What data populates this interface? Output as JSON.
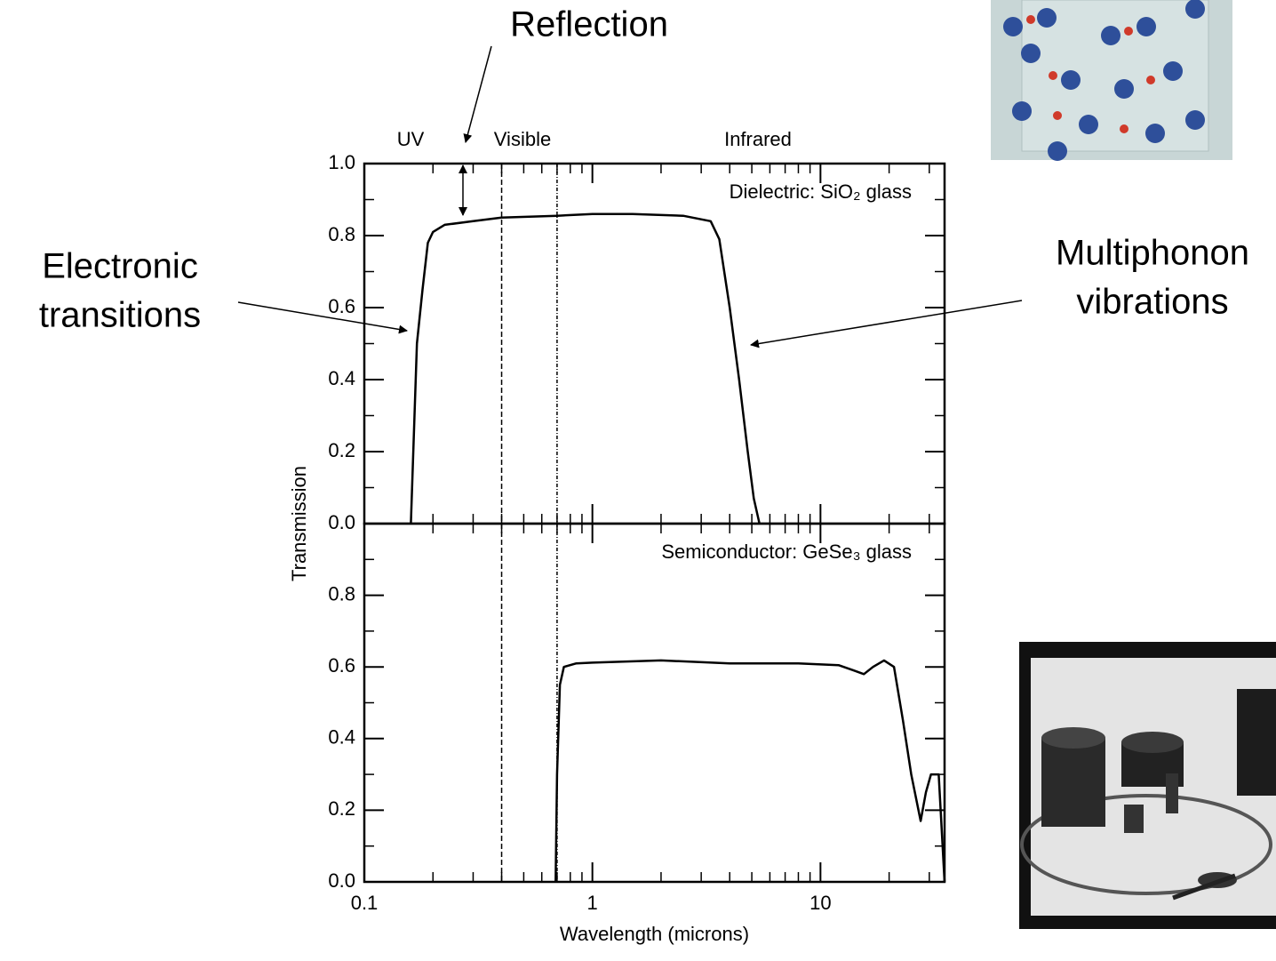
{
  "chart_data": [
    {
      "type": "line",
      "label": "Dielectric: SiO₂ glass",
      "xscale": "log",
      "xlim": [
        0.1,
        35
      ],
      "ylim": [
        0,
        1
      ],
      "xticks": [
        0.1,
        1,
        10
      ],
      "xticklabels": false,
      "xminorticks": [
        0.2,
        0.3,
        0.4,
        0.5,
        0.6,
        0.7,
        0.8,
        0.9,
        2,
        3,
        4,
        5,
        6,
        7,
        8,
        9,
        20,
        30
      ],
      "yticks": [
        {
          "value": 0,
          "label": "0.0"
        },
        0.2,
        0.4,
        0.6,
        0.8,
        {
          "value": 1,
          "label": "1.0"
        }
      ],
      "yminorticks": [
        0.1,
        0.3,
        0.5,
        0.7,
        0.9
      ],
      "vlines": [
        0.4,
        0.7
      ],
      "color": "#000000",
      "x": [
        0.16,
        0.17,
        0.18,
        0.19,
        0.2,
        0.225,
        0.3,
        0.4,
        0.7,
        1,
        1.5,
        2.5,
        3.3,
        3.6,
        4,
        4.4,
        4.8,
        5.1,
        5.4
      ],
      "values": [
        0,
        0.5,
        0.65,
        0.78,
        0.81,
        0.83,
        0.84,
        0.85,
        0.855,
        0.86,
        0.86,
        0.855,
        0.84,
        0.79,
        0.6,
        0.4,
        0.2,
        0.07,
        0
      ]
    },
    {
      "type": "line",
      "label": "Semiconductor: GeSe₃ glass",
      "xscale": "log",
      "xlim": [
        0.1,
        35
      ],
      "ylim": [
        0,
        1
      ],
      "xticks": [
        0.1,
        1,
        10
      ],
      "xticklabels": true,
      "xminorticks": [
        0.2,
        0.3,
        0.4,
        0.5,
        0.6,
        0.7,
        0.8,
        0.9,
        2,
        3,
        4,
        5,
        6,
        7,
        8,
        9,
        20,
        30
      ],
      "yticks": [
        {
          "value": 0,
          "label": "0.0"
        },
        0.2,
        0.4,
        0.6,
        0.8
      ],
      "yminorticks": [
        0.1,
        0.3,
        0.5,
        0.7,
        0.9
      ],
      "vlines": [
        0.4,
        0.7
      ],
      "color": "#000000",
      "xlabel": "Wavelength (microns)",
      "ylabel": "Transmission",
      "x": [
        0.69,
        0.7,
        0.72,
        0.75,
        0.85,
        1,
        2,
        4,
        8,
        12,
        14,
        15.5,
        17,
        19,
        21,
        23,
        25,
        27.5,
        29,
        30.5,
        33,
        35
      ],
      "values": [
        0,
        0.3,
        0.55,
        0.6,
        0.61,
        0.612,
        0.618,
        0.61,
        0.61,
        0.605,
        0.59,
        0.58,
        0.6,
        0.618,
        0.6,
        0.45,
        0.3,
        0.17,
        0.25,
        0.3,
        0.3,
        0
      ]
    }
  ],
  "annotations": {
    "reflection": "Reflection",
    "uv": "UV",
    "visible": "Visible",
    "infrared": "Infrared",
    "electronic": [
      "Electronic",
      "transitions"
    ],
    "multiphonon": [
      "Multiphonon",
      "vibrations"
    ]
  }
}
